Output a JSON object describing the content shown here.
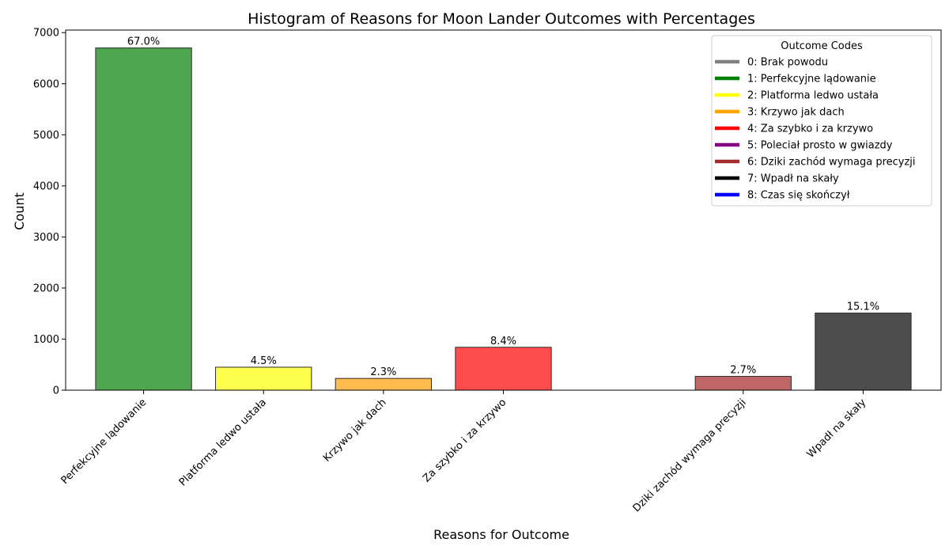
{
  "chart_data": {
    "type": "bar",
    "title": "Histogram of Reasons for Moon Lander Outcomes with Percentages",
    "xlabel": "Reasons for Outcome",
    "ylabel": "Count",
    "ylim": [
      0,
      7050
    ],
    "yticks": [
      0,
      1000,
      2000,
      3000,
      4000,
      5000,
      6000,
      7000
    ],
    "x_positions": [
      1,
      2,
      3,
      4,
      6,
      7
    ],
    "xlim": [
      0.35,
      7.65
    ],
    "categories": [
      "Perfekcyjne lądowanie",
      "Platforma ledwo ustała",
      "Krzywo jak dach",
      "Za szybko i za krzywo",
      "Dziki zachód wymaga precyzji",
      "Wpadł na skały"
    ],
    "values": [
      6700,
      450,
      230,
      840,
      270,
      1510
    ],
    "percent_labels": [
      "67.0%",
      "4.5%",
      "2.3%",
      "8.4%",
      "2.7%",
      "15.1%"
    ],
    "bar_colors": [
      "#4ea64e",
      "#ffff4e",
      "#ffbb4d",
      "#ff4d4d",
      "#c06666",
      "#4d4d4d"
    ],
    "grid": false,
    "legend": {
      "title": "Outcome Codes",
      "placement": "top-right",
      "entries": [
        {
          "label": "0: Brak powodu",
          "color": "#808080"
        },
        {
          "label": "1: Perfekcyjne lądowanie",
          "color": "#008000"
        },
        {
          "label": "2: Platforma ledwo ustała",
          "color": "#ffff00"
        },
        {
          "label": "3: Krzywo jak dach",
          "color": "#ffa500"
        },
        {
          "label": "4: Za szybko i za krzywo",
          "color": "#ff0000"
        },
        {
          "label": "5: Poleciał prosto w gwiazdy",
          "color": "#800080"
        },
        {
          "label": "6: Dziki zachód wymaga precyzji",
          "color": "#a52a2a"
        },
        {
          "label": "7: Wpadł na skały",
          "color": "#000000"
        },
        {
          "label": "8: Czas się skończył",
          "color": "#0000ff"
        }
      ]
    }
  }
}
